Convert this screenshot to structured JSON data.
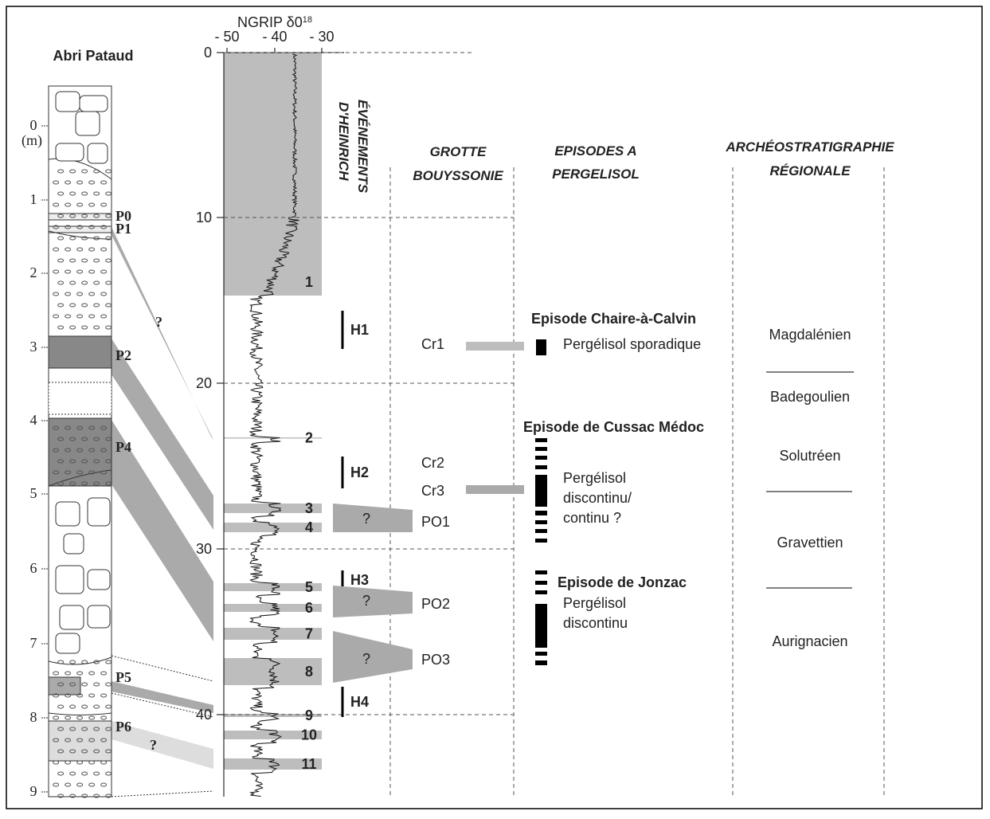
{
  "column": {
    "title": "Abri Pataud",
    "unit": "(m)",
    "depths": [
      "0",
      "1",
      "2",
      "3",
      "4",
      "5",
      "6",
      "7",
      "8",
      "9"
    ],
    "layers": [
      "P0",
      "P1",
      "P2",
      "P4",
      "P5",
      "P6"
    ],
    "unknowns": [
      "?",
      "?"
    ]
  },
  "ngrip": {
    "title": "NGRIP δ0",
    "title_sup": "18",
    "iso_ticks": [
      "- 50",
      "- 40",
      "- 30"
    ],
    "age_ticks": [
      "0",
      "10",
      "20",
      "30",
      "40"
    ],
    "interstadials": [
      "1",
      "2",
      "3",
      "4",
      "5",
      "6",
      "7",
      "8",
      "9",
      "10",
      "11"
    ]
  },
  "heinrich": {
    "header": [
      "ÉVÉNEMENTS",
      "D'HEINRICH"
    ],
    "events": [
      "H1",
      "H2",
      "H3",
      "H4"
    ]
  },
  "grotte": {
    "header": [
      "GROTTE",
      "BOUYSSONIE"
    ],
    "levels": [
      "Cr1",
      "Cr2",
      "Cr3",
      "PO1",
      "PO2",
      "PO3"
    ],
    "unknowns": [
      "?",
      "?",
      "?"
    ]
  },
  "pergelisol": {
    "header": [
      "EPISODES A",
      "PERGELISOL"
    ],
    "episodes": [
      {
        "name": "Episode Chaire-à-Calvin",
        "lines": [
          "Pergélisol sporadique"
        ]
      },
      {
        "name": "Episode de Cussac Médoc",
        "lines": [
          "Pergélisol",
          "discontinu/",
          "continu ?"
        ]
      },
      {
        "name": "Episode de Jonzac",
        "lines": [
          "Pergélisol",
          "discontinu"
        ]
      }
    ]
  },
  "archeo": {
    "header": [
      "ARCHÉOSTRATIGRAPHIE",
      "RÉGIONALE"
    ],
    "cultures": [
      "Magdalénien",
      "Badegoulien",
      "Solutréen",
      "Gravettien",
      "Aurignacien"
    ]
  }
}
